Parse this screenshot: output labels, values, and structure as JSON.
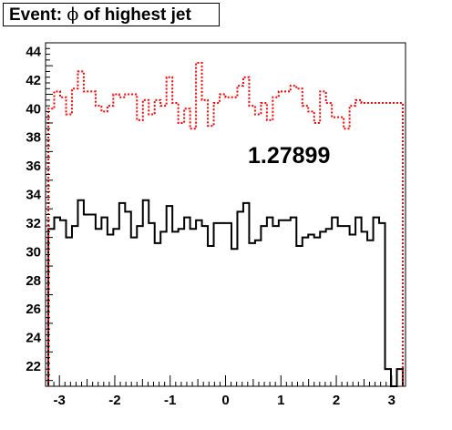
{
  "title": {
    "prefix": "Event: ",
    "symbol": "ϕ",
    "suffix": " of highest jet"
  },
  "annotation": "1.27899",
  "colors": {
    "axis": "#000000",
    "series_black": "#000000",
    "series_red": "#ff0000"
  },
  "chart_data": {
    "type": "line",
    "title": "Event: ϕ of highest jet",
    "xlabel": "",
    "ylabel": "",
    "xlim": [
      -3.25,
      3.25
    ],
    "ylim": [
      20.6,
      44.6
    ],
    "x_ticks": [
      "-3",
      "-2",
      "-1",
      "0",
      "1",
      "2",
      "3"
    ],
    "y_ticks": [
      "22",
      "24",
      "26",
      "28",
      "30",
      "32",
      "34",
      "36",
      "38",
      "40",
      "42",
      "44"
    ],
    "grid": false,
    "legend": "none",
    "histogram_range": [
      -3.2,
      3.2
    ],
    "series": [
      {
        "style": "solid",
        "color": "#000000",
        "values": [
          31.6,
          32.4,
          32.2,
          31.0,
          31.8,
          33.6,
          32.6,
          32.6,
          31.6,
          32.4,
          31.2,
          31.6,
          33.4,
          32.8,
          31.0,
          31.8,
          33.6,
          32.0,
          30.6,
          31.4,
          33.2,
          31.4,
          31.6,
          32.4,
          31.6,
          32.2,
          31.8,
          30.4,
          32.0,
          32.0,
          32.0,
          30.2,
          32.8,
          33.4,
          30.6,
          30.8,
          31.8,
          32.4,
          31.8,
          32.2,
          32.2,
          32.4,
          30.4,
          31.0,
          31.2,
          31.0,
          31.4,
          31.6,
          32.4,
          31.8,
          31.8,
          31.2,
          32.4,
          31.4,
          30.8,
          32.4,
          32.0,
          21.8,
          20.4,
          21.8
        ]
      },
      {
        "style": "dotted",
        "color": "#ff0000",
        "values": [
          40.0,
          41.2,
          40.8,
          39.6,
          41.4,
          42.6,
          41.2,
          41.2,
          40.2,
          39.8,
          40.2,
          41.0,
          40.8,
          41.0,
          41.0,
          39.2,
          40.6,
          39.6,
          40.6,
          40.2,
          42.2,
          40.4,
          39.0,
          40.0,
          38.6,
          43.2,
          40.6,
          38.8,
          40.4,
          41.0,
          40.8,
          40.8,
          41.6,
          42.2,
          40.2,
          39.6,
          40.4,
          39.2,
          40.8,
          41.2,
          41.2,
          41.6,
          41.4,
          40.2,
          39.8,
          39.0,
          41.2,
          40.4,
          39.4,
          39.4,
          38.6,
          40.2,
          40.6,
          40.4,
          40.4,
          40.4,
          40.4,
          40.4,
          40.4,
          40.4
        ]
      }
    ]
  }
}
